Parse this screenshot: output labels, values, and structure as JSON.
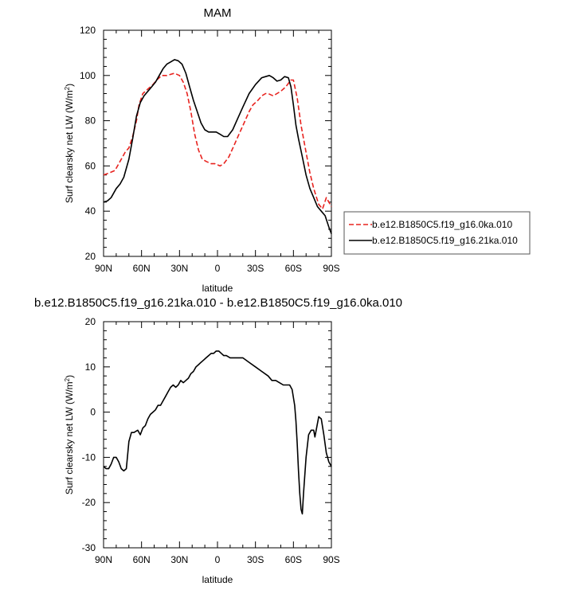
{
  "chart_data": [
    {
      "type": "line",
      "title": "MAM",
      "xlabel": "latitude",
      "ylabel": "Surf clearsky net LW (W/m²)",
      "ylabel_main": "Surf clearsky net LW (W/m",
      "ylabel_sup": "2",
      "ylabel_end": ")",
      "xlim": [
        90,
        -90
      ],
      "ylim": [
        20,
        120
      ],
      "x_ticks": [
        90,
        60,
        30,
        0,
        -30,
        -60,
        -90
      ],
      "x_tick_labels": [
        "90N",
        "60N",
        "30N",
        "0",
        "30S",
        "60S",
        "90S"
      ],
      "y_ticks": [
        20,
        40,
        60,
        80,
        100,
        120
      ],
      "y_tick_labels": [
        "20",
        "40",
        "60",
        "80",
        "100",
        "120"
      ],
      "legend_position": "right",
      "series": [
        {
          "name": "b.e12.B1850C5.f19_g16.0ka.010",
          "color": "#e8231f",
          "dash": "dashed",
          "x": [
            90,
            85,
            81,
            77,
            73,
            70,
            67,
            64,
            62,
            59,
            55,
            51,
            48,
            44,
            40,
            37,
            34,
            30,
            27,
            24,
            21,
            18,
            15,
            12,
            9,
            5,
            2,
            -2,
            -5,
            -9,
            -13,
            -17,
            -21,
            -25,
            -28,
            -32,
            -35,
            -38,
            -40,
            -44,
            -47,
            -50,
            -54,
            -58,
            -60,
            -63,
            -66,
            -70,
            -73,
            -76,
            -80,
            -83,
            -86,
            -88,
            -90
          ],
          "y": [
            56,
            57,
            58,
            62,
            66,
            68,
            73,
            80,
            87,
            92,
            94,
            96,
            98,
            100,
            100,
            100.5,
            101,
            100,
            97,
            92,
            84,
            74,
            67,
            63,
            62,
            61,
            61,
            60,
            61,
            64,
            69,
            74,
            79,
            84,
            87,
            89,
            91,
            92,
            92,
            91,
            92,
            93,
            95,
            98,
            98,
            90,
            78,
            66,
            57,
            50,
            43,
            41,
            46,
            44,
            42
          ]
        },
        {
          "name": "b.e12.B1850C5.f19_g16.21ka.010",
          "color": "#000000",
          "dash": "solid",
          "x": [
            90,
            87,
            84,
            80,
            77,
            74,
            70,
            67,
            64,
            61,
            58,
            55,
            52,
            49,
            46,
            43,
            40,
            37,
            34,
            31,
            28,
            25,
            22,
            19,
            16,
            13,
            10,
            7,
            4,
            1,
            -2,
            -5,
            -8,
            -12,
            -16,
            -20,
            -25,
            -30,
            -35,
            -38,
            -41,
            -44,
            -47,
            -50,
            -53,
            -56,
            -58,
            -60,
            -62,
            -64,
            -67,
            -70,
            -73,
            -76,
            -79,
            -82,
            -85,
            -88,
            -90
          ],
          "y": [
            44,
            44.5,
            46,
            50,
            52,
            55,
            63,
            72,
            82,
            88,
            91,
            93,
            95,
            97,
            100,
            103,
            105,
            106,
            107,
            106.5,
            105,
            101,
            95,
            89,
            84,
            79,
            76,
            75,
            75,
            75,
            74,
            73,
            73,
            76,
            81,
            86,
            92,
            96,
            99,
            99.5,
            100,
            99,
            97.5,
            98,
            99.5,
            99,
            95,
            87,
            78,
            72,
            64,
            56,
            50,
            46,
            42,
            40,
            38,
            33,
            30
          ]
        }
      ]
    },
    {
      "type": "line",
      "title": "b.e12.B1850C5.f19_g16.21ka.010 - b.e12.B1850C5.f19_g16.0ka.010",
      "xlabel": "latitude",
      "ylabel": "Surf clearsky net LW (W/m²)",
      "ylabel_main": "Surf clearsky net LW (W/m",
      "ylabel_sup": "2",
      "ylabel_end": ")",
      "xlim": [
        90,
        -90
      ],
      "ylim": [
        -30,
        20
      ],
      "x_ticks": [
        90,
        60,
        30,
        0,
        -30,
        -60,
        -90
      ],
      "x_tick_labels": [
        "90N",
        "60N",
        "30N",
        "0",
        "30S",
        "60S",
        "90S"
      ],
      "y_ticks": [
        -30,
        -20,
        -10,
        0,
        10,
        20
      ],
      "y_tick_labels": [
        "-30",
        "-20",
        "-10",
        "0",
        "10",
        "20"
      ],
      "series": [
        {
          "color": "#000000",
          "dash": "solid",
          "x": [
            90,
            88,
            86,
            84,
            82,
            80,
            78,
            76,
            74,
            72,
            70,
            68,
            66,
            63,
            61,
            59,
            57,
            55,
            53,
            51,
            49,
            47,
            45,
            43,
            41,
            39,
            37,
            35,
            33,
            31,
            29,
            27,
            25,
            23,
            21,
            19,
            17,
            15,
            13,
            11,
            9,
            7,
            5,
            3,
            1,
            -1,
            -3,
            -5,
            -7,
            -10,
            -15,
            -20,
            -25,
            -30,
            -35,
            -40,
            -43,
            -46,
            -49,
            -52,
            -55,
            -57,
            -59,
            -61,
            -62,
            -63,
            -64,
            -65,
            -66,
            -67,
            -68,
            -70,
            -72,
            -74,
            -76,
            -77,
            -78,
            -80,
            -82,
            -84,
            -86,
            -88,
            -90
          ],
          "y": [
            -12,
            -12.5,
            -12.5,
            -11.5,
            -10,
            -10,
            -11,
            -12.5,
            -13,
            -12.5,
            -6.5,
            -4.5,
            -4.5,
            -4,
            -5,
            -3.5,
            -3,
            -1.5,
            -0.5,
            0,
            0.5,
            1.5,
            1.5,
            2.5,
            3.5,
            4.5,
            5.5,
            6,
            5.5,
            6,
            7,
            6.5,
            7,
            7.5,
            8.5,
            9,
            10,
            10.5,
            11,
            11.5,
            12,
            12.5,
            13,
            13,
            13.5,
            13.5,
            13,
            12.5,
            12.5,
            12,
            12,
            12,
            11,
            10,
            9,
            8,
            7,
            7,
            6.5,
            6,
            6,
            6,
            5,
            1.5,
            -2,
            -7,
            -13,
            -18,
            -21.5,
            -22.5,
            -18,
            -10,
            -5,
            -4,
            -4,
            -5.5,
            -4,
            -1,
            -1.5,
            -5,
            -9,
            -11,
            -12
          ]
        }
      ]
    }
  ]
}
